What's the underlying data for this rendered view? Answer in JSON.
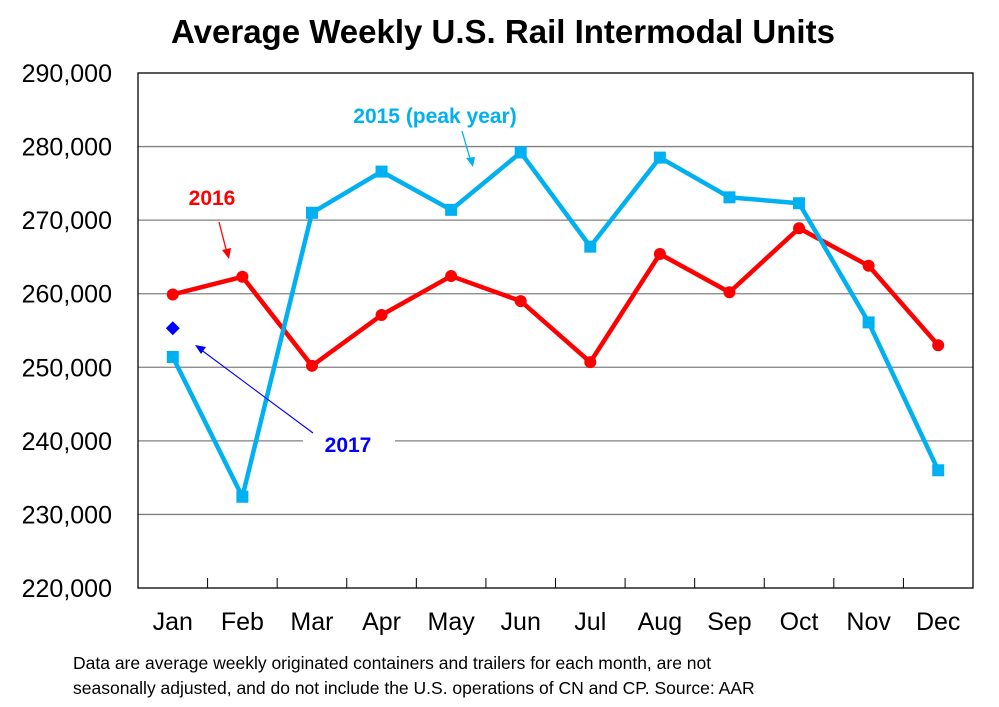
{
  "chart_data": {
    "type": "line",
    "title": "Average Weekly U.S. Rail Intermodal Units",
    "xlabel": "",
    "ylabel": "",
    "ylim": [
      220000,
      290000
    ],
    "ytick_step": 10000,
    "yticks": [
      "220,000",
      "230,000",
      "240,000",
      "250,000",
      "260,000",
      "270,000",
      "280,000",
      "290,000"
    ],
    "categories": [
      "Jan",
      "Feb",
      "Mar",
      "Apr",
      "May",
      "Jun",
      "Jul",
      "Aug",
      "Sep",
      "Oct",
      "Nov",
      "Dec"
    ],
    "grid": true,
    "legend": "none (inline annotations)",
    "series": [
      {
        "name": "2015 (peak year)",
        "color": "#00b0f0",
        "marker": "square",
        "values": [
          251400,
          232400,
          271000,
          276600,
          271400,
          279200,
          266400,
          278500,
          273100,
          272300,
          256100,
          236000
        ]
      },
      {
        "name": "2016",
        "color": "#ff0000",
        "marker": "circle",
        "values": [
          259900,
          262300,
          250200,
          257100,
          262400,
          259000,
          250700,
          265400,
          260200,
          268900,
          263800,
          253000
        ]
      },
      {
        "name": "2017",
        "color": "#0000ff",
        "marker": "diamond",
        "values": [
          255300,
          null,
          null,
          null,
          null,
          null,
          null,
          null,
          null,
          null,
          null,
          null
        ]
      }
    ],
    "annotations": [
      {
        "text": "2015 (peak year)",
        "series": "2015 (peak year)",
        "color": "#00b0f0",
        "points_to": "Apr–May segment"
      },
      {
        "text": "2016",
        "series": "2016",
        "color": "#ff0000",
        "points_to": "Feb point"
      },
      {
        "text": "2017",
        "series": "2017",
        "color": "#0000ff",
        "points_to": "Jan point"
      }
    ],
    "footnote": [
      "Data are average weekly originated containers and trailers for each month, are not",
      "seasonally adjusted, and do not include the U.S. operations of CN and CP.  Source: AAR"
    ]
  }
}
